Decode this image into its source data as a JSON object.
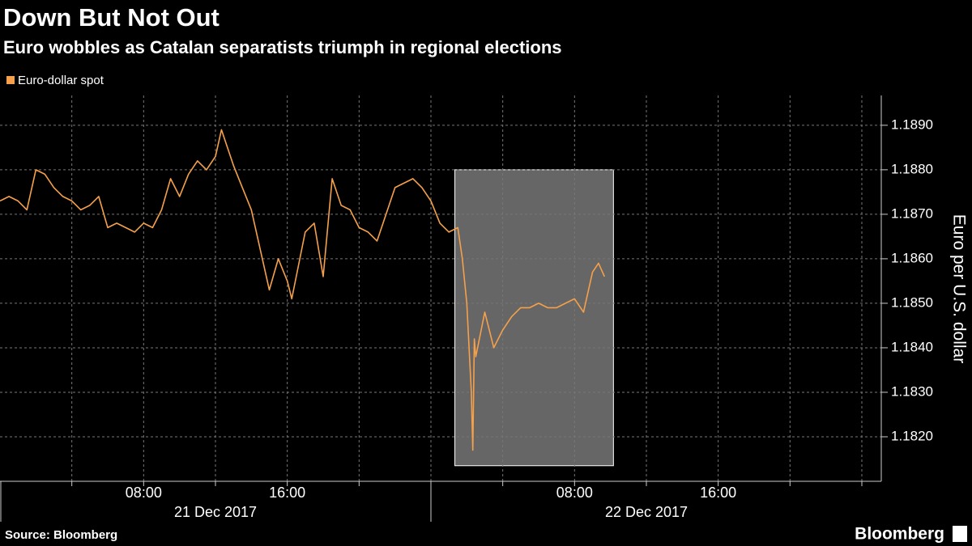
{
  "chart_data": {
    "type": "line",
    "title": "Down But Not Out",
    "subtitle": "Euro wobbles as Catalan separatists triumph in regional elections",
    "y_label": "Euro per U.S. dollar",
    "source": "Source: Bloomberg",
    "brand": "Bloomberg",
    "legend": "top-left",
    "grid": true,
    "xlim": [
      "2017-12-21 00:00",
      "2017-12-23 01:05"
    ],
    "ylim": [
      1.181,
      1.18967
    ],
    "xticks": [
      {
        "value": "2017-12-21 08:00",
        "label": "08:00"
      },
      {
        "value": "2017-12-21 16:00",
        "label": "16:00"
      },
      {
        "value": "2017-12-22 08:00",
        "label": "08:00"
      },
      {
        "value": "2017-12-22 16:00",
        "label": "16:00"
      }
    ],
    "x_minor_ticks": [
      "2017-12-21 04:00",
      "2017-12-21 12:00",
      "2017-12-21 20:00",
      "2017-12-22 00:00",
      "2017-12-22 04:00",
      "2017-12-22 12:00",
      "2017-12-22 20:00",
      "2017-12-23 00:00"
    ],
    "x_date_labels": [
      {
        "value": "2017-12-21 12:00",
        "label": "21 Dec 2017"
      },
      {
        "value": "2017-12-22 12:00",
        "label": "22 Dec 2017"
      }
    ],
    "x_day_boundaries": [
      "2017-12-21 00:00",
      "2017-12-22 00:00"
    ],
    "yticks": [
      {
        "value": 1.182,
        "label": "1.1820"
      },
      {
        "value": 1.183,
        "label": "1.1830"
      },
      {
        "value": 1.184,
        "label": "1.1840"
      },
      {
        "value": 1.185,
        "label": "1.1850"
      },
      {
        "value": 1.186,
        "label": "1.1860"
      },
      {
        "value": 1.187,
        "label": "1.1870"
      },
      {
        "value": 1.188,
        "label": "1.1880"
      },
      {
        "value": 1.189,
        "label": "1.1890"
      }
    ],
    "highlight": {
      "x": [
        "2017-12-22 01:20",
        "2017-12-22 10:10"
      ],
      "y": [
        1.18135,
        1.188
      ],
      "color": "#666666"
    },
    "x": [
      "2017-12-21 00:00",
      "2017-12-21 00:30",
      "2017-12-21 01:00",
      "2017-12-21 01:30",
      "2017-12-21 02:00",
      "2017-12-21 02:30",
      "2017-12-21 03:00",
      "2017-12-21 03:30",
      "2017-12-21 04:00",
      "2017-12-21 04:30",
      "2017-12-21 05:00",
      "2017-12-21 05:30",
      "2017-12-21 06:00",
      "2017-12-21 06:30",
      "2017-12-21 07:00",
      "2017-12-21 07:30",
      "2017-12-21 08:00",
      "2017-12-21 08:30",
      "2017-12-21 09:00",
      "2017-12-21 09:30",
      "2017-12-21 10:00",
      "2017-12-21 10:30",
      "2017-12-21 11:00",
      "2017-12-21 11:30",
      "2017-12-21 12:00",
      "2017-12-21 12:20",
      "2017-12-21 13:00",
      "2017-12-21 13:30",
      "2017-12-21 14:00",
      "2017-12-21 14:30",
      "2017-12-21 15:00",
      "2017-12-21 15:30",
      "2017-12-21 16:00",
      "2017-12-21 16:15",
      "2017-12-21 17:00",
      "2017-12-21 17:30",
      "2017-12-21 18:00",
      "2017-12-21 18:30",
      "2017-12-21 19:00",
      "2017-12-21 19:30",
      "2017-12-21 20:00",
      "2017-12-21 20:30",
      "2017-12-21 21:00",
      "2017-12-21 21:30",
      "2017-12-21 22:00",
      "2017-12-21 22:30",
      "2017-12-21 23:00",
      "2017-12-21 23:30",
      "2017-12-22 00:00",
      "2017-12-22 00:30",
      "2017-12-22 01:00",
      "2017-12-22 01:30",
      "2017-12-22 01:45",
      "2017-12-22 02:00",
      "2017-12-22 02:15",
      "2017-12-22 02:20",
      "2017-12-22 02:25",
      "2017-12-22 02:30",
      "2017-12-22 03:00",
      "2017-12-22 03:30",
      "2017-12-22 04:00",
      "2017-12-22 04:30",
      "2017-12-22 05:00",
      "2017-12-22 05:30",
      "2017-12-22 06:00",
      "2017-12-22 06:30",
      "2017-12-22 07:00",
      "2017-12-22 07:30",
      "2017-12-22 08:00",
      "2017-12-22 08:30",
      "2017-12-22 09:00",
      "2017-12-22 09:20",
      "2017-12-22 09:40"
    ],
    "series": [
      {
        "name": "Euro-dollar spot",
        "color": "#f5a04a",
        "values": [
          1.1873,
          1.1874,
          1.1873,
          1.1871,
          1.188,
          1.1879,
          1.1876,
          1.1874,
          1.1873,
          1.1871,
          1.1872,
          1.1874,
          1.1867,
          1.1868,
          1.1867,
          1.1866,
          1.1868,
          1.1867,
          1.1871,
          1.1878,
          1.1874,
          1.1879,
          1.1882,
          1.188,
          1.1883,
          1.1889,
          1.1881,
          1.1876,
          1.1871,
          1.1862,
          1.1853,
          1.186,
          1.1855,
          1.1851,
          1.1866,
          1.1868,
          1.1856,
          1.1878,
          1.1872,
          1.1871,
          1.1867,
          1.1866,
          1.1864,
          1.187,
          1.1876,
          1.1877,
          1.1878,
          1.1876,
          1.1873,
          1.1868,
          1.1866,
          1.1867,
          1.186,
          1.185,
          1.183,
          1.1817,
          1.1842,
          1.1838,
          1.1848,
          1.184,
          1.1844,
          1.1847,
          1.1849,
          1.1849,
          1.185,
          1.1849,
          1.1849,
          1.185,
          1.1851,
          1.1848,
          1.1857,
          1.1859,
          1.1856
        ]
      }
    ]
  }
}
